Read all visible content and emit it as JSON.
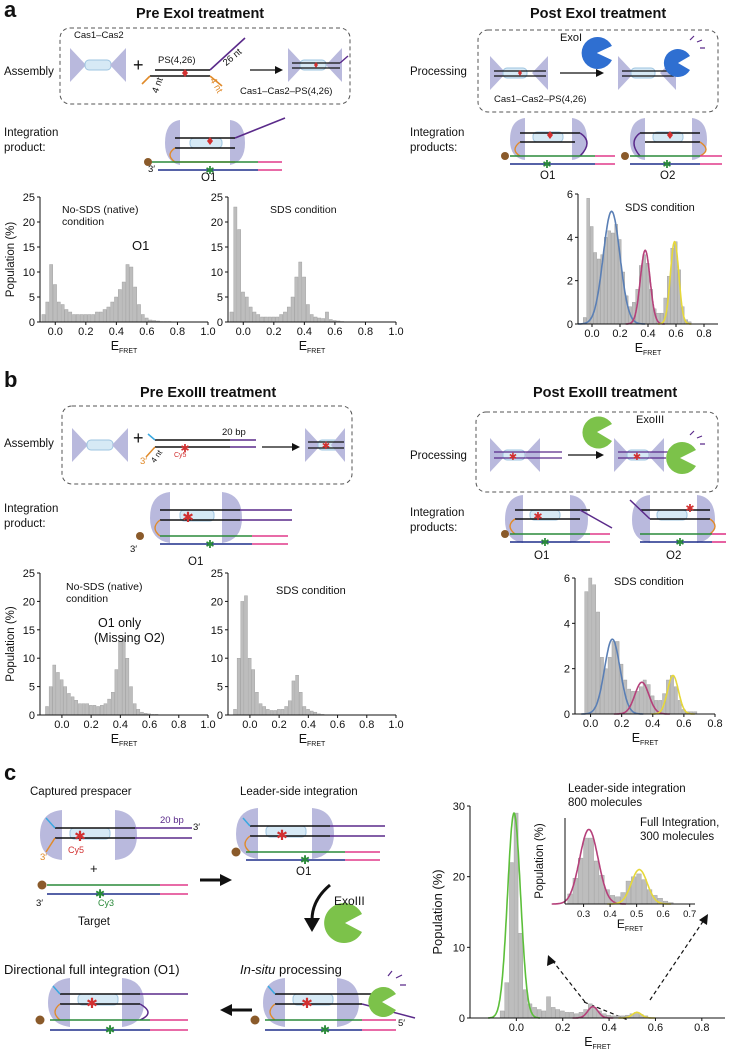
{
  "panel_a": {
    "letter": "a",
    "left_title": "Pre ExoI treatment",
    "right_title": "Post ExoI treatment",
    "assembly_label": "Assembly",
    "processing_label": "Processing",
    "cas_label": "Cas1–Cas2",
    "plus": "+",
    "ps_label": "PS(4,26)",
    "nt26": "26 nt",
    "nt4a": "4 nt",
    "nt4b": "4 nt",
    "complex_label": "Cas1–Cas2–PS(4,26)",
    "complex_label2": "Cas1–Cas2–PS(4,26)",
    "exo_label": "ExoI",
    "integration_product": "Integration\nproduct:",
    "integration_products": "Integration\nproducts:",
    "o1": "O1",
    "o1r": "O1",
    "o2": "O2",
    "three_prime": "3′"
  },
  "panel_b": {
    "letter": "b",
    "left_title": "Pre ExoIII treatment",
    "right_title": "Post ExoIII treatment",
    "assembly_label": "Assembly",
    "processing_label": "Processing",
    "bp20": "20 bp",
    "cy5": "Cy5",
    "nt4": "4 nt",
    "three": "3′",
    "plus": "+",
    "exo_label": "ExoIII",
    "integration_product": "Integration\nproduct:",
    "integration_products": "Integration\nproducts:",
    "o1": "O1",
    "o1r": "O1",
    "o2": "O2",
    "three_prime": "3′"
  },
  "panel_c": {
    "letter": "c",
    "captured": "Captured prespacer",
    "bp20": "20 bp",
    "three_a": "3′",
    "three_b": "3′",
    "three_c": "3′",
    "cy5": "Cy5",
    "cy3": "Cy3",
    "plus": "+",
    "target": "Target",
    "leader": "Leader-side integration",
    "o1": "O1",
    "exo": "ExoIII",
    "insitu_em": "In-situ",
    "insitu_rest": " processing",
    "directional": "Directional full integration (O1)",
    "five_prime": "5′"
  },
  "colors": {
    "bar": "#bdbdbd",
    "cas": "#b9b9dd",
    "green_fit": "#5cbf3a",
    "blue_fit": "#5a7fb5",
    "magenta_fit": "#b5407a",
    "yellow_fit": "#e6d83a",
    "exo_blue": "#2f6fd1",
    "exo_green": "#7cc24a",
    "purple": "#5a2a8a",
    "orange": "#e08a2a",
    "red": "#d23030",
    "pink": "#e03a8a",
    "navy": "#1f2f8a",
    "green_dna": "#2a8a3a",
    "brown": "#8a5a2a"
  },
  "chart_data": [
    {
      "id": "a1",
      "type": "bar",
      "annotation_1": "No-SDS (native)",
      "annotation_2": "condition",
      "annotation_3": "O1",
      "xlabel": "E",
      "xlabel_sub": "FRET",
      "ylabel": "Population (%)",
      "xlim": [
        -0.1,
        1.0
      ],
      "ylim": [
        0,
        25
      ],
      "xticks": [
        "0.0",
        "0.2",
        "0.4",
        "0.6",
        "0.8",
        "1.0"
      ],
      "xtick_values": [
        0,
        0.2,
        0.4,
        0.6,
        0.8,
        1.0
      ],
      "yticks": [
        "0",
        "5",
        "10",
        "15",
        "20",
        "25"
      ],
      "ytick_values": [
        0,
        5,
        10,
        15,
        20,
        25
      ],
      "bin_width": 0.025,
      "x": [
        -0.075,
        -0.05,
        -0.025,
        0,
        0.025,
        0.05,
        0.075,
        0.1,
        0.125,
        0.15,
        0.175,
        0.2,
        0.225,
        0.25,
        0.275,
        0.3,
        0.325,
        0.35,
        0.375,
        0.4,
        0.425,
        0.45,
        0.475,
        0.5,
        0.525,
        0.55,
        0.575,
        0.6,
        0.625,
        0.65,
        0.675,
        0.7,
        0.725,
        0.75
      ],
      "values": [
        1.5,
        4,
        11.5,
        7.5,
        4,
        3.5,
        2.5,
        2,
        1.5,
        1.5,
        1.5,
        1.5,
        1.5,
        1.5,
        2,
        2,
        2.5,
        3,
        4,
        5,
        6.5,
        8,
        11.5,
        11,
        7,
        3.5,
        1.5,
        0.8,
        0.4,
        0.3,
        0.2,
        0.1,
        0.1,
        0.1
      ]
    },
    {
      "id": "a2",
      "type": "bar",
      "annotation_1": "SDS condition",
      "xlabel": "E",
      "xlabel_sub": "FRET",
      "xlim": [
        -0.1,
        1.0
      ],
      "ylim": [
        0,
        25
      ],
      "xticks": [
        "0.0",
        "0.2",
        "0.4",
        "0.6",
        "0.8",
        "1.0"
      ],
      "xtick_values": [
        0,
        0.2,
        0.4,
        0.6,
        0.8,
        1.0
      ],
      "yticks": [
        "0",
        "5",
        "10",
        "15",
        "20",
        "25"
      ],
      "ytick_values": [
        0,
        5,
        10,
        15,
        20,
        25
      ],
      "bin_width": 0.025,
      "x": [
        -0.075,
        -0.05,
        -0.025,
        0,
        0.025,
        0.05,
        0.075,
        0.1,
        0.125,
        0.15,
        0.175,
        0.2,
        0.225,
        0.25,
        0.275,
        0.3,
        0.325,
        0.35,
        0.375,
        0.4,
        0.425,
        0.45,
        0.475,
        0.5,
        0.525,
        0.55,
        0.575,
        0.6,
        0.625,
        0.65
      ],
      "values": [
        2,
        23,
        18.5,
        6,
        5,
        3,
        2,
        1.5,
        1,
        1,
        1,
        1,
        1,
        1.5,
        2,
        3,
        5,
        9,
        12,
        9,
        3.5,
        1.5,
        1,
        0.8,
        0.7,
        2,
        0.5,
        0.3,
        0.2,
        0.1
      ]
    },
    {
      "id": "a3",
      "type": "bar",
      "annotation_1": "SDS condition",
      "xlabel": "E",
      "xlabel_sub": "FRET",
      "xlim": [
        -0.1,
        0.9
      ],
      "ylim": [
        0,
        6
      ],
      "xticks": [
        "0.0",
        "0.2",
        "0.4",
        "0.6",
        "0.8"
      ],
      "xtick_values": [
        0,
        0.2,
        0.4,
        0.6,
        0.8
      ],
      "yticks": [
        "0",
        "2",
        "4",
        "6"
      ],
      "ytick_values": [
        0,
        2,
        4,
        6
      ],
      "bin_width": 0.025,
      "x": [
        -0.05,
        -0.025,
        0,
        0.025,
        0.05,
        0.075,
        0.1,
        0.125,
        0.15,
        0.175,
        0.2,
        0.225,
        0.25,
        0.275,
        0.3,
        0.325,
        0.35,
        0.375,
        0.4,
        0.425,
        0.45,
        0.475,
        0.5,
        0.525,
        0.55,
        0.575,
        0.6,
        0.625,
        0.65,
        0.675,
        0.7
      ],
      "values": [
        0.3,
        5.8,
        4.5,
        3.3,
        3,
        3.2,
        4,
        4.3,
        4.2,
        4.6,
        3.9,
        2.4,
        1.3,
        0.8,
        1,
        1.6,
        2.7,
        3.2,
        2.8,
        1.6,
        0.7,
        0.5,
        0.5,
        1.2,
        2.2,
        3.5,
        3.8,
        2.5,
        0.8,
        0.2,
        0.1
      ],
      "fits": [
        {
          "color": "#5a7fb5",
          "mu": 0.14,
          "sigma": 0.06,
          "amp": 5.2
        },
        {
          "color": "#b5407a",
          "mu": 0.38,
          "sigma": 0.035,
          "amp": 3.4
        },
        {
          "color": "#e6d83a",
          "mu": 0.59,
          "sigma": 0.03,
          "amp": 3.8
        }
      ]
    },
    {
      "id": "b1",
      "type": "bar",
      "annotation_1": "No-SDS (native)",
      "annotation_2": "condition",
      "annotation_3": "O1 only",
      "annotation_4": "(Missing O2)",
      "xlabel": "E",
      "xlabel_sub": "FRET",
      "ylabel": "Population (%)",
      "xlim": [
        -0.15,
        1.0
      ],
      "ylim": [
        0,
        25
      ],
      "xticks": [
        "0.0",
        "0.2",
        "0.4",
        "0.6",
        "0.8",
        "1.0"
      ],
      "xtick_values": [
        0,
        0.2,
        0.4,
        0.6,
        0.8,
        1.0
      ],
      "yticks": [
        "0",
        "5",
        "10",
        "15",
        "20",
        "25"
      ],
      "ytick_values": [
        0,
        5,
        10,
        15,
        20,
        25
      ],
      "bin_width": 0.025,
      "x": [
        -0.1,
        -0.075,
        -0.05,
        -0.025,
        0,
        0.025,
        0.05,
        0.075,
        0.1,
        0.125,
        0.15,
        0.175,
        0.2,
        0.225,
        0.25,
        0.275,
        0.3,
        0.325,
        0.35,
        0.375,
        0.4,
        0.425,
        0.45,
        0.475,
        0.5,
        0.525,
        0.55,
        0.575,
        0.6,
        0.625,
        0.65
      ],
      "values": [
        1.5,
        5,
        8.8,
        7.5,
        6.2,
        5,
        3.8,
        3.2,
        2.6,
        2,
        2,
        2,
        1.7,
        1.7,
        1.5,
        1.7,
        2,
        2.8,
        4,
        8,
        13,
        13.7,
        10,
        5,
        2,
        1,
        0.5,
        0.3,
        0.2,
        0.1,
        0.1
      ]
    },
    {
      "id": "b2",
      "type": "bar",
      "annotation_1": "SDS condition",
      "xlabel": "E",
      "xlabel_sub": "FRET",
      "xlim": [
        -0.15,
        1.0
      ],
      "ylim": [
        0,
        25
      ],
      "xticks": [
        "0.0",
        "0.2",
        "0.4",
        "0.6",
        "0.8",
        "1.0"
      ],
      "xtick_values": [
        0,
        0.2,
        0.4,
        0.6,
        0.8,
        1.0
      ],
      "yticks": [
        "0",
        "5",
        "10",
        "15",
        "20",
        "25"
      ],
      "ytick_values": [
        0,
        5,
        10,
        15,
        20,
        25
      ],
      "bin_width": 0.025,
      "x": [
        -0.1,
        -0.075,
        -0.05,
        -0.025,
        0,
        0.025,
        0.05,
        0.075,
        0.1,
        0.125,
        0.15,
        0.175,
        0.2,
        0.225,
        0.25,
        0.275,
        0.3,
        0.325,
        0.35,
        0.375,
        0.4,
        0.425,
        0.45,
        0.475,
        0.5
      ],
      "values": [
        1,
        10,
        20,
        21,
        10,
        8,
        4,
        2,
        1.5,
        1,
        0.8,
        0.8,
        1,
        1,
        1.5,
        2.5,
        6,
        7,
        4,
        1.5,
        1,
        0.7,
        0.5,
        0.2,
        0.1
      ]
    },
    {
      "id": "b3",
      "type": "bar",
      "annotation_1": "SDS condition",
      "xlabel": "E",
      "xlabel_sub": "FRET",
      "xlim": [
        -0.1,
        0.8
      ],
      "ylim": [
        0,
        6
      ],
      "xticks": [
        "0.0",
        "0.2",
        "0.4",
        "0.6",
        "0.8"
      ],
      "xtick_values": [
        0,
        0.2,
        0.4,
        0.6,
        0.8
      ],
      "yticks": [
        "0",
        "2",
        "4",
        "6"
      ],
      "ytick_values": [
        0,
        2,
        4,
        6
      ],
      "bin_width": 0.025,
      "x": [
        -0.025,
        0,
        0.025,
        0.05,
        0.075,
        0.1,
        0.125,
        0.15,
        0.175,
        0.2,
        0.225,
        0.25,
        0.275,
        0.3,
        0.325,
        0.35,
        0.375,
        0.4,
        0.425,
        0.45,
        0.475,
        0.5,
        0.525,
        0.55,
        0.575,
        0.6,
        0.625,
        0.65,
        0.675
      ],
      "values": [
        5.4,
        6,
        5.7,
        4.5,
        2.5,
        2,
        2.5,
        3.2,
        3.2,
        2.2,
        1.5,
        1.1,
        1,
        1,
        1.2,
        1.5,
        1.3,
        0.8,
        0.6,
        0.6,
        0.9,
        1.5,
        1.7,
        1.2,
        0.6,
        0.2,
        0.1,
        0.1,
        0.1
      ],
      "fits": [
        {
          "color": "#5a7fb5",
          "mu": 0.14,
          "sigma": 0.05,
          "amp": 3.3
        },
        {
          "color": "#b5407a",
          "mu": 0.33,
          "sigma": 0.045,
          "amp": 1.4
        },
        {
          "color": "#e6d83a",
          "mu": 0.53,
          "sigma": 0.035,
          "amp": 1.7
        }
      ]
    },
    {
      "id": "c_main",
      "type": "bar",
      "xlabel": "E",
      "xlabel_sub": "FRET",
      "ylabel": "Population (%)",
      "xlim": [
        -0.2,
        0.9
      ],
      "ylim": [
        0,
        30
      ],
      "xticks": [
        "0.0",
        "0.2",
        "0.4",
        "0.6",
        "0.8"
      ],
      "xtick_values": [
        0,
        0.2,
        0.4,
        0.6,
        0.8
      ],
      "yticks": [
        "0",
        "10",
        "20",
        "30"
      ],
      "ytick_values": [
        0,
        10,
        20,
        30
      ],
      "bin_width": 0.02,
      "x": [
        -0.06,
        -0.04,
        -0.02,
        0,
        0.02,
        0.04,
        0.06,
        0.08,
        0.1,
        0.12,
        0.14,
        0.16,
        0.18,
        0.2,
        0.22,
        0.24,
        0.26,
        0.28,
        0.3,
        0.32,
        0.34,
        0.36,
        0.38,
        0.4,
        0.42,
        0.44,
        0.46,
        0.48,
        0.5,
        0.52,
        0.54,
        0.56
      ],
      "values": [
        1,
        5,
        22,
        29,
        12,
        4,
        2,
        1.5,
        1.2,
        1,
        3,
        1.5,
        1.2,
        1,
        0.8,
        0.8,
        0.6,
        0.8,
        1.2,
        2,
        1.5,
        1,
        0.6,
        0.4,
        0.3,
        0.3,
        0.3,
        0.4,
        0.6,
        0.8,
        0.5,
        0.3
      ],
      "fits": [
        {
          "color": "#5cbf3a",
          "mu": -0.01,
          "sigma": 0.028,
          "amp": 29
        },
        {
          "color": "#b5407a",
          "mu": 0.33,
          "sigma": 0.022,
          "amp": 1.6
        },
        {
          "color": "#e6d83a",
          "mu": 0.52,
          "sigma": 0.02,
          "amp": 0.8
        }
      ]
    },
    {
      "id": "c_inset",
      "type": "bar",
      "annotation_1": "Leader-side integration",
      "annotation_2": "800 molecules",
      "annotation_3": "Full Integration,",
      "annotation_4": "300 molecules",
      "xlabel": "E",
      "xlabel_sub": "FRET",
      "ylabel": "Population (%)",
      "xlim": [
        0.23,
        0.72
      ],
      "xticks": [
        "0.3",
        "0.4",
        "0.5",
        "0.6",
        "0.7"
      ],
      "xtick_values": [
        0.3,
        0.4,
        0.5,
        0.6,
        0.7
      ],
      "bin_width": 0.02,
      "x": [
        0.25,
        0.27,
        0.29,
        0.31,
        0.33,
        0.35,
        0.37,
        0.39,
        0.41,
        0.43,
        0.45,
        0.47,
        0.49,
        0.51,
        0.53,
        0.55,
        0.57,
        0.59,
        0.61,
        0.63
      ],
      "values": [
        0.35,
        0.9,
        1.6,
        2.3,
        2.3,
        1.5,
        1.0,
        0.5,
        0.3,
        0.25,
        0.4,
        0.8,
        0.95,
        1.05,
        0.85,
        0.5,
        0.3,
        0.2,
        0.1,
        0.05
      ],
      "fits": [
        {
          "color": "#b5407a",
          "mu": 0.32,
          "sigma": 0.035,
          "amp": 2.6
        },
        {
          "color": "#e6d83a",
          "mu": 0.51,
          "sigma": 0.03,
          "amp": 1.2
        }
      ]
    }
  ]
}
